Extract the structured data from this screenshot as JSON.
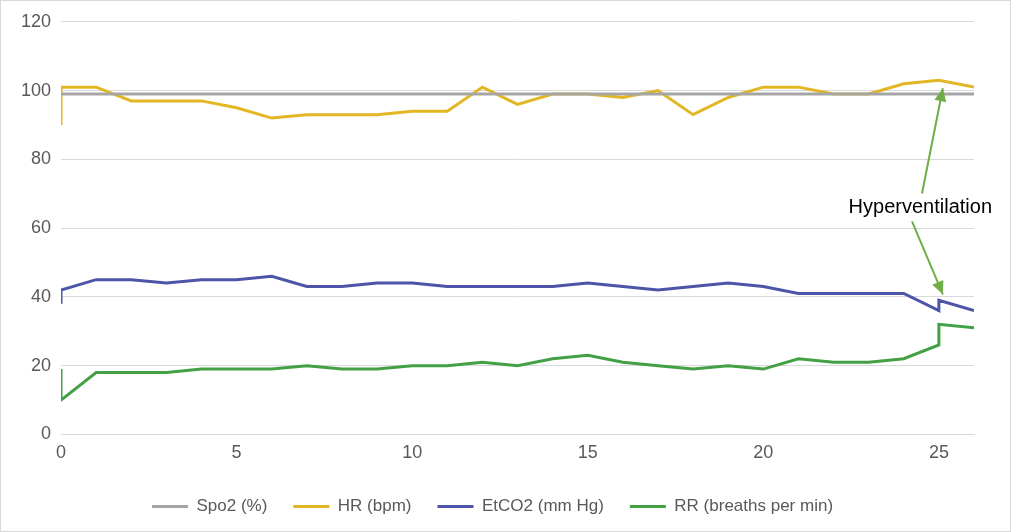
{
  "chart_data": {
    "type": "line",
    "x": [
      0,
      0,
      1,
      2,
      3,
      4,
      5,
      6,
      7,
      8,
      9,
      10,
      11,
      12,
      13,
      14,
      15,
      16,
      17,
      18,
      19,
      20,
      21,
      22,
      23,
      24,
      25,
      25,
      26
    ],
    "series": [
      {
        "name": "Spo2 (%)",
        "color": "#a5a5a5",
        "values": [
          99,
          99,
          99,
          99,
          99,
          99,
          99,
          99,
          99,
          99,
          99,
          99,
          99,
          99,
          99,
          99,
          99,
          99,
          99,
          99,
          99,
          99,
          99,
          99,
          99,
          99,
          99,
          99,
          99
        ]
      },
      {
        "name": "HR (bpm)",
        "color": "#e3b623",
        "values": [
          90,
          101,
          101,
          97,
          97,
          97,
          95,
          92,
          93,
          93,
          93,
          94,
          94,
          101,
          96,
          99,
          99,
          98,
          100,
          93,
          98,
          101,
          101,
          99,
          99,
          102,
          103,
          103,
          101
        ]
      },
      {
        "name": "EtCO2 (mm Hg)",
        "color": "#4c55a8",
        "values": [
          38,
          42,
          45,
          45,
          44,
          45,
          45,
          46,
          43,
          43,
          44,
          44,
          43,
          43,
          43,
          43,
          44,
          43,
          42,
          43,
          44,
          43,
          41,
          41,
          41,
          41,
          36,
          39,
          36
        ]
      },
      {
        "name": "RR (breaths per min)",
        "color": "#44a044",
        "values": [
          19,
          10,
          18,
          18,
          18,
          19,
          19,
          19,
          20,
          19,
          19,
          20,
          20,
          21,
          20,
          22,
          23,
          21,
          20,
          19,
          20,
          19,
          22,
          21,
          21,
          22,
          26,
          32,
          31
        ]
      }
    ],
    "xlim": [
      0,
      26
    ],
    "xticks": [
      0,
      5,
      10,
      15,
      20,
      25
    ],
    "ylim": [
      0,
      120
    ],
    "yticks": [
      0,
      20,
      40,
      60,
      80,
      100,
      120
    ],
    "grid": true,
    "legend": "bottom",
    "annotations": [
      {
        "text": "Hyperventilation",
        "color": "#70ad47"
      }
    ]
  }
}
